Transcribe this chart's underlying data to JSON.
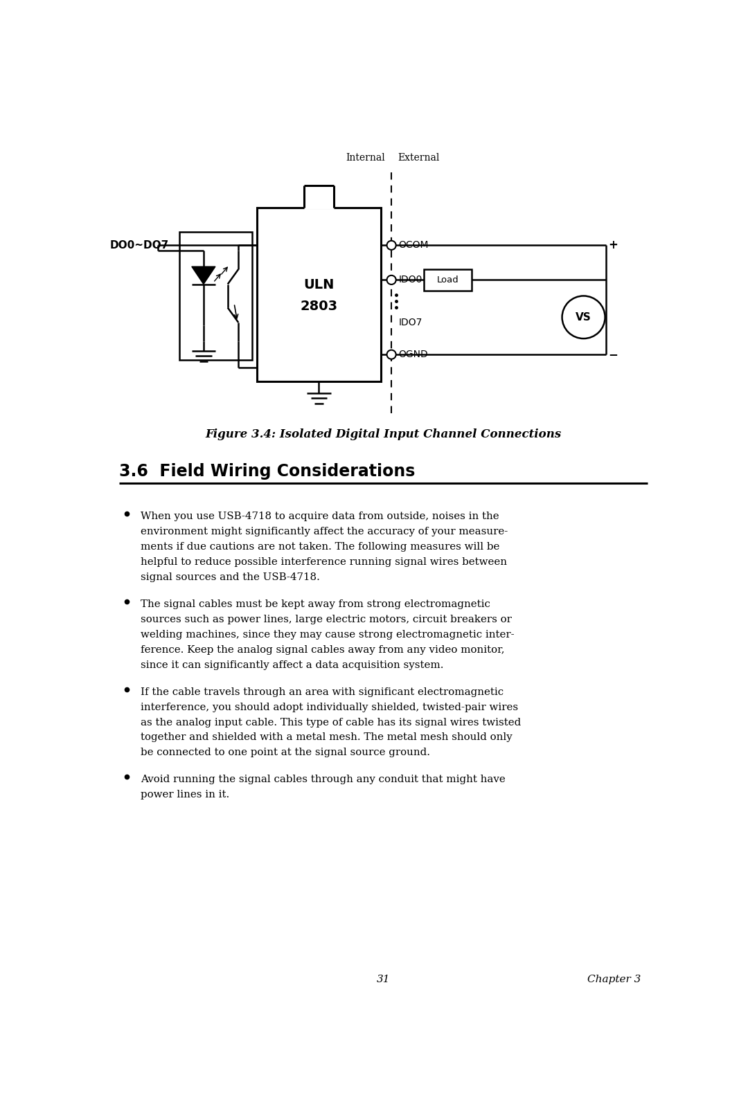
{
  "bg_color": "#ffffff",
  "fig_width": 10.8,
  "fig_height": 16.18,
  "title": "Figure 3.4: Isolated Digital Input Channel Connections",
  "section_title": "3.6  Field Wiring Considerations",
  "page_number": "31",
  "chapter": "Chapter 3",
  "bullet_items": [
    {
      "lines": [
        "When you use USB-4718 to acquire data from outside, noises in the",
        "environment might significantly affect the accuracy of your measure-",
        "ments if due cautions are not taken. The following measures will be",
        "helpful to reduce possible interference running signal wires between",
        "signal sources and the USB-4718."
      ]
    },
    {
      "lines": [
        "The signal cables must be kept away from strong electromagnetic",
        "sources such as power lines, large electric motors, circuit breakers or",
        "welding machines, since they may cause strong electromagnetic inter-",
        "ference. Keep the analog signal cables away from any video monitor,",
        "since it can significantly affect a data acquisition system."
      ]
    },
    {
      "lines": [
        "If the cable travels through an area with significant electromagnetic",
        "interference, you should adopt individually shielded, twisted-pair wires",
        "as the analog input cable. This type of cable has its signal wires twisted",
        "together and shielded with a metal mesh. The metal mesh should only",
        "be connected to one point at the signal source ground."
      ]
    },
    {
      "lines": [
        "Avoid running the signal cables through any conduit that might have",
        "power lines in it."
      ]
    }
  ],
  "internal_label": "Internal",
  "external_label": "External",
  "uln_label1": "ULN",
  "uln_label2": "2803",
  "do_label": "DO0~DO7",
  "ocom_label": "OCOM",
  "ido0_label": "IDO0",
  "ido7_label": "IDO7",
  "ognd_label": "OGND",
  "load_label": "Load",
  "vs_label": "VS",
  "plus_label": "+",
  "minus_label": "−"
}
